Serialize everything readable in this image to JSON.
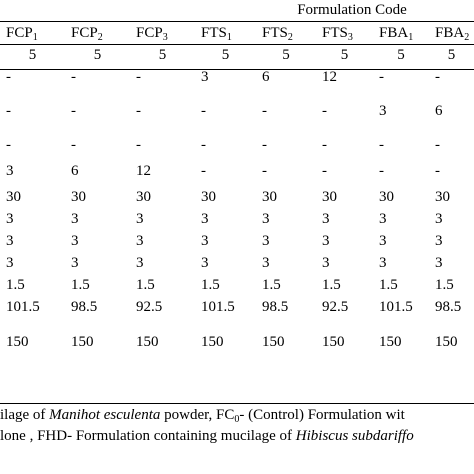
{
  "table": {
    "group_header": "Formulation Code",
    "columns": [
      {
        "base": "FCP",
        "sub": "1"
      },
      {
        "base": "FCP",
        "sub": "2"
      },
      {
        "base": "FCP",
        "sub": "3"
      },
      {
        "base": "FTS",
        "sub": "1"
      },
      {
        "base": "FTS",
        "sub": "2"
      },
      {
        "base": "FTS",
        "sub": "3"
      },
      {
        "base": "FBA",
        "sub": "1"
      },
      {
        "base": "FBA",
        "sub": "2"
      }
    ],
    "rows": [
      {
        "style": "nums",
        "cells": [
          "5",
          "5",
          "5",
          "5",
          "5",
          "5",
          "5",
          "5"
        ]
      },
      {
        "style": "plain",
        "cells": [
          "-",
          "-",
          "-",
          "3",
          "6",
          "12",
          "-",
          "-"
        ]
      },
      {
        "style": "tall",
        "cells": [
          "-",
          "-",
          "-",
          "-",
          "-",
          "-",
          "3",
          "6"
        ]
      },
      {
        "style": "plain",
        "cells": [
          "-",
          "-",
          "-",
          "-",
          "-",
          "-",
          "-",
          "-"
        ]
      },
      {
        "style": "gap",
        "cells": [
          "3",
          "6",
          "12",
          "-",
          "-",
          "-",
          "-",
          "-"
        ]
      },
      {
        "style": "plain",
        "cells": [
          "30",
          "30",
          "30",
          "30",
          "30",
          "30",
          "30",
          "30"
        ]
      },
      {
        "style": "plain",
        "cells": [
          "3",
          "3",
          "3",
          "3",
          "3",
          "3",
          "3",
          "3"
        ]
      },
      {
        "style": "plain",
        "cells": [
          "3",
          "3",
          "3",
          "3",
          "3",
          "3",
          "3",
          "3"
        ]
      },
      {
        "style": "plain",
        "cells": [
          "3",
          "3",
          "3",
          "3",
          "3",
          "3",
          "3",
          "3"
        ]
      },
      {
        "style": "plain",
        "cells": [
          "1.5",
          "1.5",
          "1.5",
          "1.5",
          "1.5",
          "1.5",
          "1.5",
          "1.5"
        ]
      },
      {
        "style": "plain",
        "cells": [
          "101.5",
          "98.5",
          "92.5",
          "101.5",
          "98.5",
          "92.5",
          "101.5",
          "98.5"
        ]
      },
      {
        "style": "final",
        "cells": [
          "150",
          "150",
          "150",
          "150",
          "150",
          "150",
          "150",
          "150"
        ]
      }
    ]
  },
  "footnote": {
    "line1": {
      "a": "ilage of ",
      "b_italic": "Manihot esculenta",
      "c": " powder,   FC",
      "c_sub": "0",
      "d": "- (Control) Formulation wit"
    },
    "line2": {
      "a": "lone ,  FHD- Formulation containing mucilage of ",
      "b_italic": "Hibiscus subdariffo"
    }
  }
}
